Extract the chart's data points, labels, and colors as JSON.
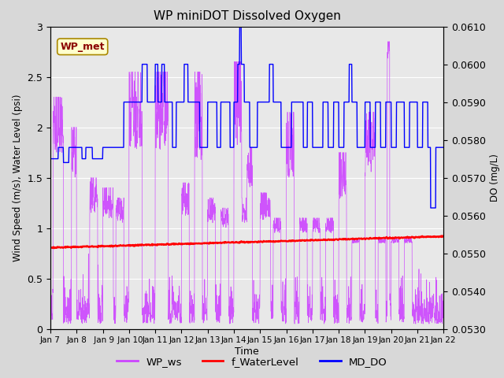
{
  "title": "WP miniDOT Dissolved Oxygen",
  "xlabel": "Time",
  "ylabel_left": "Wind Speed (m/s), Water Level (psi)",
  "ylabel_right": "DO (mg/L)",
  "annotation_box": "WP_met",
  "xlim_days": [
    7,
    22
  ],
  "ylim_left": [
    0.0,
    3.0
  ],
  "ylim_right": [
    0.053,
    0.061
  ],
  "xtick_labels": [
    "Jan 7",
    "Jan 8",
    " Jan 9",
    " Jan 10",
    "Jan 11",
    "Jan 12",
    "Jan 13",
    "Jan 14",
    "Jan 15",
    "Jan 16",
    "Jan 17",
    "Jan 18",
    "Jan 19",
    "Jan 20",
    "Jan 21",
    "Jan 22"
  ],
  "xtick_positions": [
    7,
    8,
    9,
    10,
    11,
    12,
    13,
    14,
    15,
    16,
    17,
    18,
    19,
    20,
    21,
    22
  ],
  "yticks_left": [
    0.0,
    0.5,
    1.0,
    1.5,
    2.0,
    2.5,
    3.0
  ],
  "yticks_right": [
    0.053,
    0.054,
    0.055,
    0.056,
    0.057,
    0.058,
    0.059,
    0.06,
    0.061
  ],
  "fig_bg_color": "#d8d8d8",
  "plot_bg_color": "#e8e8e8",
  "grid_color": "white",
  "color_ws": "#cc44ff",
  "color_wl": "red",
  "color_do": "blue",
  "legend_items": [
    "WP_ws",
    "f_WaterLevel",
    "MD_DO"
  ],
  "legend_colors": [
    "#cc44ff",
    "red",
    "blue"
  ],
  "seed": 42,
  "do_step_data": [
    [
      7.0,
      7.3,
      0.0575
    ],
    [
      7.3,
      7.5,
      0.0578
    ],
    [
      7.5,
      7.7,
      0.0574
    ],
    [
      7.7,
      8.2,
      0.0578
    ],
    [
      8.2,
      8.35,
      0.0575
    ],
    [
      8.35,
      8.6,
      0.0578
    ],
    [
      8.6,
      9.0,
      0.0575
    ],
    [
      9.0,
      9.8,
      0.0578
    ],
    [
      9.8,
      10.2,
      0.059
    ],
    [
      10.2,
      10.5,
      0.059
    ],
    [
      10.5,
      10.7,
      0.06
    ],
    [
      10.7,
      11.0,
      0.059
    ],
    [
      11.0,
      11.1,
      0.06
    ],
    [
      11.1,
      11.25,
      0.059
    ],
    [
      11.25,
      11.35,
      0.06
    ],
    [
      11.35,
      11.5,
      0.059
    ],
    [
      11.5,
      11.65,
      0.059
    ],
    [
      11.65,
      11.8,
      0.0578
    ],
    [
      11.8,
      12.0,
      0.059
    ],
    [
      12.0,
      12.1,
      0.059
    ],
    [
      12.1,
      12.25,
      0.06
    ],
    [
      12.25,
      12.5,
      0.059
    ],
    [
      12.5,
      12.7,
      0.059
    ],
    [
      12.7,
      13.0,
      0.0578
    ],
    [
      13.0,
      13.2,
      0.059
    ],
    [
      13.2,
      13.35,
      0.059
    ],
    [
      13.35,
      13.5,
      0.0578
    ],
    [
      13.5,
      13.7,
      0.059
    ],
    [
      13.7,
      13.85,
      0.059
    ],
    [
      13.85,
      14.0,
      0.0578
    ],
    [
      14.0,
      14.15,
      0.059
    ],
    [
      14.15,
      14.22,
      0.06
    ],
    [
      14.22,
      14.28,
      0.061
    ],
    [
      14.28,
      14.4,
      0.06
    ],
    [
      14.4,
      14.6,
      0.059
    ],
    [
      14.6,
      14.9,
      0.0578
    ],
    [
      14.9,
      15.2,
      0.059
    ],
    [
      15.2,
      15.35,
      0.059
    ],
    [
      15.35,
      15.5,
      0.06
    ],
    [
      15.5,
      15.8,
      0.059
    ],
    [
      15.8,
      16.0,
      0.0578
    ],
    [
      16.0,
      16.2,
      0.0578
    ],
    [
      16.2,
      16.5,
      0.059
    ],
    [
      16.5,
      16.65,
      0.059
    ],
    [
      16.65,
      16.8,
      0.0578
    ],
    [
      16.8,
      17.0,
      0.059
    ],
    [
      17.0,
      17.2,
      0.0578
    ],
    [
      17.2,
      17.4,
      0.0578
    ],
    [
      17.4,
      17.6,
      0.059
    ],
    [
      17.6,
      17.8,
      0.0578
    ],
    [
      17.8,
      18.0,
      0.059
    ],
    [
      18.0,
      18.2,
      0.0578
    ],
    [
      18.2,
      18.4,
      0.059
    ],
    [
      18.4,
      18.5,
      0.06
    ],
    [
      18.5,
      18.7,
      0.059
    ],
    [
      18.7,
      19.0,
      0.0578
    ],
    [
      19.0,
      19.2,
      0.059
    ],
    [
      19.2,
      19.4,
      0.0578
    ],
    [
      19.4,
      19.6,
      0.059
    ],
    [
      19.6,
      19.8,
      0.0578
    ],
    [
      19.8,
      20.0,
      0.059
    ],
    [
      20.0,
      20.2,
      0.0578
    ],
    [
      20.2,
      20.5,
      0.059
    ],
    [
      20.5,
      20.7,
      0.0578
    ],
    [
      20.7,
      21.0,
      0.059
    ],
    [
      21.0,
      21.2,
      0.0578
    ],
    [
      21.2,
      21.4,
      0.059
    ],
    [
      21.4,
      21.5,
      0.0578
    ],
    [
      21.5,
      21.7,
      0.0562
    ],
    [
      21.7,
      22.0,
      0.0578
    ]
  ]
}
